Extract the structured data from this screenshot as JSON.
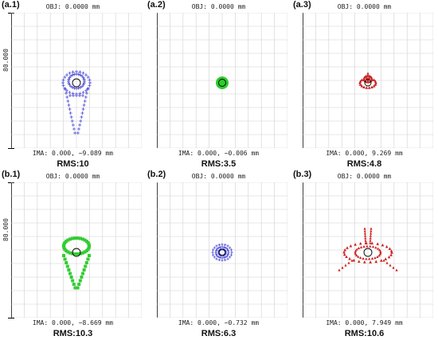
{
  "panels": [
    {
      "tag": "(a.1)",
      "obj": "OBJ: 0.0000 mm",
      "ima": "IMA: 0.000, −9.089 mm",
      "rms": "RMS:10",
      "scale": "80.000",
      "show_scale": true,
      "color": "#4a4ad6",
      "pattern": "drop-blue"
    },
    {
      "tag": "(a.2)",
      "obj": "OBJ: 0.0000 mm",
      "ima": "IMA: 0.000, −0.006 mm",
      "rms": "RMS:3.5",
      "scale": "",
      "show_scale": false,
      "color": "#2ecc2e",
      "pattern": "dot-green"
    },
    {
      "tag": "(a.3)",
      "obj": "OBJ: 0.0000 mm",
      "ima": "IMA: 0.000, 9.269 mm",
      "rms": "RMS:4.8",
      "scale": "",
      "show_scale": false,
      "color": "#cc2222",
      "pattern": "small-red"
    },
    {
      "tag": "(b.1)",
      "obj": "OBJ: 0.0000 mm",
      "ima": "IMA: 0.000, −8.669 mm",
      "rms": "RMS:10.3",
      "scale": "80.000",
      "show_scale": true,
      "color": "#33cc33",
      "pattern": "drop-green"
    },
    {
      "tag": "(b.2)",
      "obj": "OBJ: 0.0000 mm",
      "ima": "IMA: 0.000, −0.732 mm",
      "rms": "RMS:6.3",
      "scale": "",
      "show_scale": false,
      "color": "#4a4ad6",
      "pattern": "ring-blue"
    },
    {
      "tag": "(b.3)",
      "obj": "OBJ: 0.0000 mm",
      "ima": "IMA: 0.000, 7.949 mm",
      "rms": "RMS:10.6",
      "scale": "",
      "show_scale": false,
      "color": "#cc2222",
      "pattern": "star-red"
    }
  ],
  "colors": {
    "grid": "#d0d0d0",
    "airy_circle": "#000000"
  }
}
